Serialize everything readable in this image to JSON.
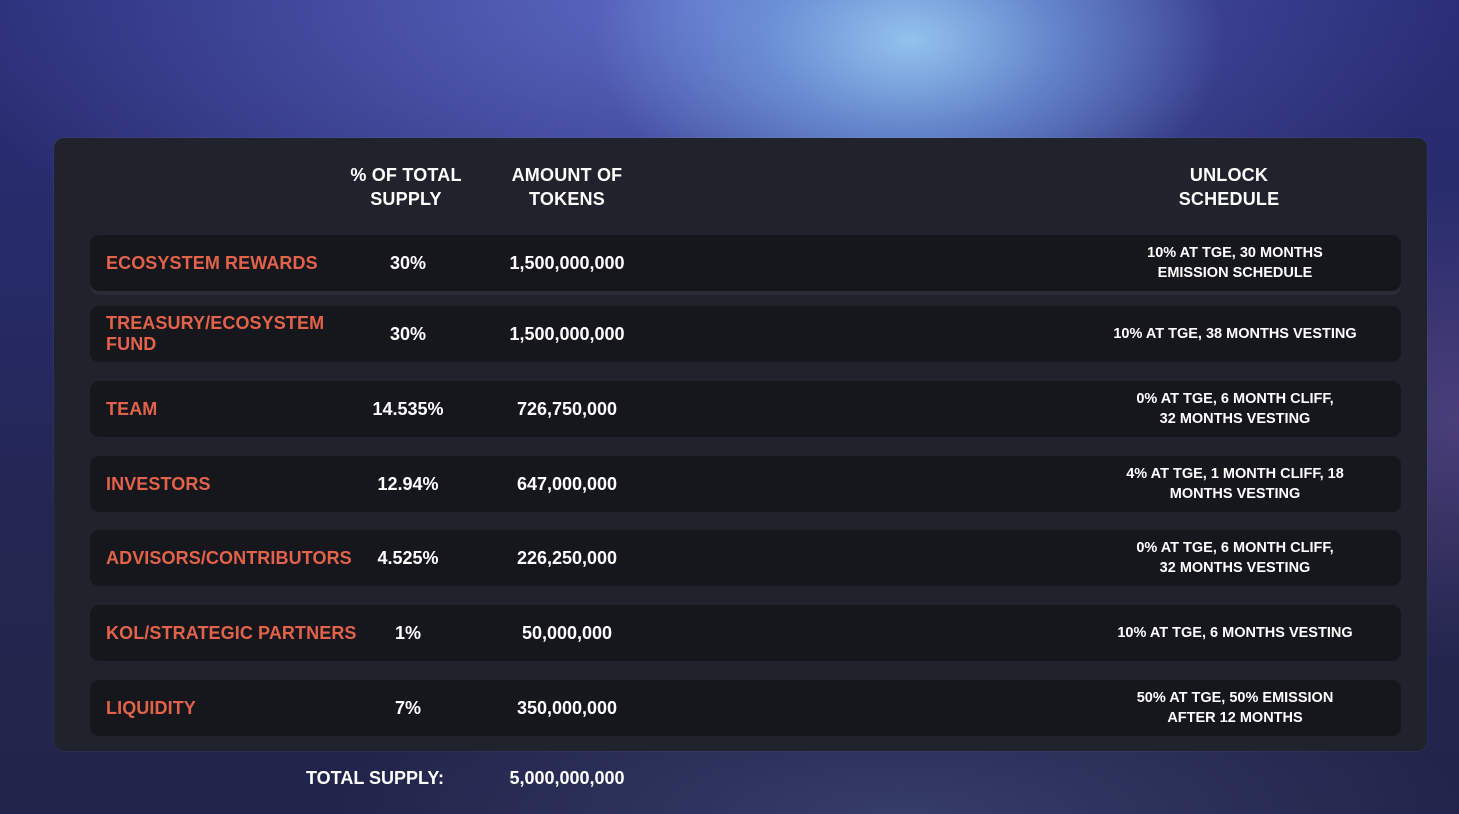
{
  "table": {
    "headers": {
      "percent": "%  OF TOTAL\nSUPPLY",
      "amount": "AMOUNT OF\nTOKENS",
      "unlock": "UNLOCK\nSCHEDULE"
    },
    "rows": [
      {
        "name": "ECOSYSTEM REWARDS",
        "percent": "30%",
        "amount": "1,500,000,000",
        "unlock": "10% AT TGE, 30 MONTHS EMISSION SCHEDULE"
      },
      {
        "name": "TREASURY/ECOSYSTEM FUND",
        "percent": "30%",
        "amount": "1,500,000,000",
        "unlock": "10% AT TGE, 38 MONTHS VESTING"
      },
      {
        "name": "TEAM",
        "percent": "14.535%",
        "amount": "726,750,000",
        "unlock": "0% AT TGE, 6 MONTH CLIFF, 32 MONTHS VESTING"
      },
      {
        "name": "INVESTORS",
        "percent": "12.94%",
        "amount": "647,000,000",
        "unlock": "4% AT TGE, 1 MONTH CLIFF, 18 MONTHS VESTING"
      },
      {
        "name": "ADVISORS/CONTRIBUTORS",
        "percent": "4.525%",
        "amount": "226,250,000",
        "unlock": "0% AT TGE, 6 MONTH CLIFF, 32 MONTHS VESTING"
      },
      {
        "name": "KOL/STRATEGIC PARTNERS",
        "percent": "1%",
        "amount": "50,000,000",
        "unlock": "10% AT TGE, 6 MONTHS VESTING"
      },
      {
        "name": "LIQUIDITY",
        "percent": "7%",
        "amount": "350,000,000",
        "unlock": "50% AT TGE,  50% EMISSION AFTER 12 MONTHS"
      }
    ]
  },
  "total": {
    "label": "TOTAL SUPPLY:",
    "value": "5,000,000,000"
  },
  "colors": {
    "accent": "#e2634a",
    "panel": "#20232b",
    "row": "#15171d"
  }
}
